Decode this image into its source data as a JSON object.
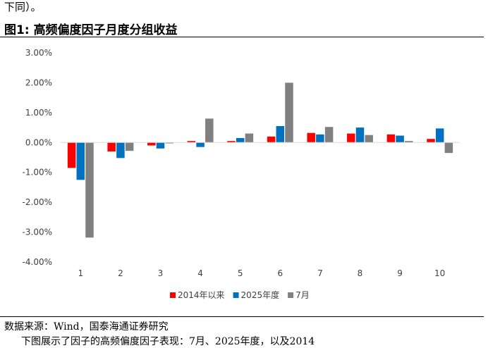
{
  "header": {
    "top_text": "下同）。",
    "figure_label": "图1:",
    "figure_title": "高频偏度因子月度分组收益"
  },
  "footer": {
    "source": "数据来源：Wind，国泰海通证券研究",
    "bottom_text": "下图展示了因子的高频偏度因子表现：7月、2025年度，以及2014"
  },
  "colors": {
    "since_2014": "#ff0000",
    "year_2025": "#0070c0",
    "july": "#808080"
  },
  "chart_data": {
    "type": "bar",
    "categories": [
      "1",
      "2",
      "3",
      "4",
      "5",
      "6",
      "7",
      "8",
      "9",
      "10"
    ],
    "series": [
      {
        "name": "2014年以来",
        "color": "#ff0000",
        "values": [
          -0.85,
          -0.3,
          -0.1,
          0.05,
          0.05,
          0.2,
          0.32,
          0.3,
          0.27,
          0.12
        ]
      },
      {
        "name": "2025年度",
        "color": "#0070c0",
        "values": [
          -1.25,
          -0.52,
          -0.2,
          -0.15,
          0.15,
          0.55,
          0.27,
          0.5,
          0.23,
          0.47
        ]
      },
      {
        "name": "7月",
        "color": "#808080",
        "values": [
          -3.18,
          -0.28,
          -0.03,
          0.8,
          0.3,
          2.0,
          0.52,
          0.25,
          0.05,
          -0.35
        ]
      }
    ],
    "y_unit": "%",
    "ylim": [
      -4.0,
      3.0
    ],
    "yticks": [
      "-4.00%",
      "-3.00%",
      "-2.00%",
      "-1.00%",
      "0.00%",
      "1.00%",
      "2.00%",
      "3.00%"
    ],
    "grid": false,
    "legend_position": "bottom"
  }
}
